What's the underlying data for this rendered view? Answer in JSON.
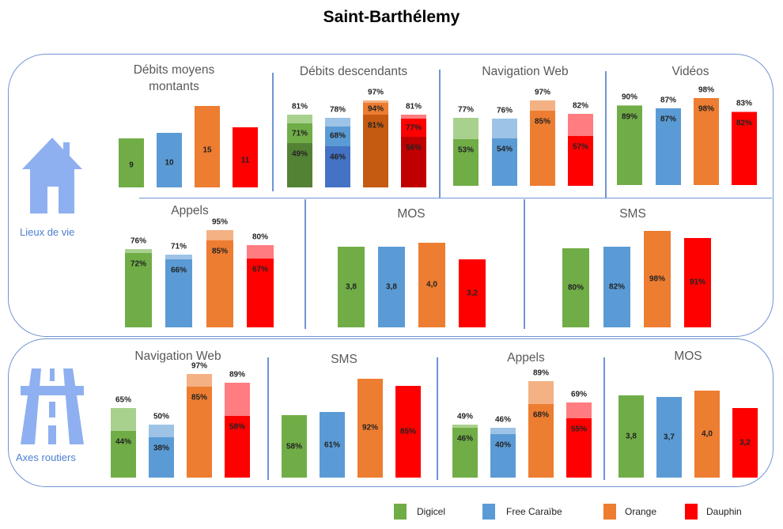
{
  "title": "Saint-Barthélemy",
  "sections": [
    {
      "label": "Lieux de vie",
      "icon": "house-icon"
    },
    {
      "label": "Axes routiers",
      "icon": "highway-icon"
    }
  ],
  "legend": [
    {
      "name": "Digicel",
      "color": "#70ad47"
    },
    {
      "name": "Free Caraïbe",
      "color": "#5b9bd5"
    },
    {
      "name": "Orange",
      "color": "#ed7d31"
    },
    {
      "name": "Dauphin",
      "color": "#ff0000"
    }
  ],
  "colors": {
    "Digicel": {
      "main": "#70ad47",
      "light": "#a9d18e",
      "dark": "#548235"
    },
    "Free Caraïbe": {
      "main": "#5b9bd5",
      "light": "#9dc3e6",
      "dark": "#4472c4"
    },
    "Orange": {
      "main": "#ed7d31",
      "light": "#f4b183",
      "dark": "#c55a11"
    },
    "Dauphin": {
      "main": "#ff0000",
      "light": "#ff7c80",
      "dark": "#c00000"
    }
  },
  "chart_data": [
    {
      "type": "bar",
      "section": "Lieux de vie",
      "title": "Débits moyens\nmontants",
      "categories": [
        "Digicel",
        "Free Caraïbe",
        "Orange",
        "Dauphin"
      ],
      "values": [
        [
          9
        ],
        [
          10
        ],
        [
          15
        ],
        [
          11
        ]
      ],
      "labels": [
        [
          "9"
        ],
        [
          "10"
        ],
        [
          "15"
        ],
        [
          "11"
        ]
      ]
    },
    {
      "type": "bar",
      "section": "Lieux de vie",
      "title": "Débits descendants",
      "categories": [
        "Digicel",
        "Free Caraïbe",
        "Orange",
        "Dauphin"
      ],
      "values": [
        [
          49,
          71,
          81
        ],
        [
          46,
          68,
          78
        ],
        [
          81,
          94,
          97
        ],
        [
          56,
          77,
          81
        ]
      ],
      "labels": [
        [
          "49%",
          "71%",
          "81%"
        ],
        [
          "46%",
          "68%",
          "78%"
        ],
        [
          "81%",
          "94%",
          "97%"
        ],
        [
          "56%",
          "77%",
          "81%"
        ]
      ]
    },
    {
      "type": "bar",
      "section": "Lieux de vie",
      "title": "Navigation Web",
      "categories": [
        "Digicel",
        "Free Caraïbe",
        "Orange",
        "Dauphin"
      ],
      "values": [
        [
          53,
          77
        ],
        [
          54,
          76
        ],
        [
          85,
          97
        ],
        [
          57,
          82
        ]
      ],
      "labels": [
        [
          "53%",
          "77%"
        ],
        [
          "54%",
          "76%"
        ],
        [
          "85%",
          "97%"
        ],
        [
          "57%",
          "82%"
        ]
      ]
    },
    {
      "type": "bar",
      "section": "Lieux de vie",
      "title": "Vidéos",
      "categories": [
        "Digicel",
        "Free Caraïbe",
        "Orange",
        "Dauphin"
      ],
      "values": [
        [
          89,
          90
        ],
        [
          87,
          87
        ],
        [
          98,
          98
        ],
        [
          82,
          83
        ]
      ],
      "labels": [
        [
          "89%",
          "90%"
        ],
        [
          "87%",
          "87%"
        ],
        [
          "98%",
          "98%"
        ],
        [
          "82%",
          "83%"
        ]
      ]
    },
    {
      "type": "bar",
      "section": "Lieux de vie",
      "title": "Appels",
      "categories": [
        "Digicel",
        "Free Caraïbe",
        "Orange",
        "Dauphin"
      ],
      "values": [
        [
          72,
          76
        ],
        [
          66,
          71
        ],
        [
          85,
          95
        ],
        [
          67,
          80
        ]
      ],
      "labels": [
        [
          "72%",
          "76%"
        ],
        [
          "66%",
          "71%"
        ],
        [
          "85%",
          "95%"
        ],
        [
          "67%",
          "80%"
        ]
      ]
    },
    {
      "type": "bar",
      "section": "Lieux de vie",
      "title": "MOS",
      "categories": [
        "Digicel",
        "Free Caraïbe",
        "Orange",
        "Dauphin"
      ],
      "values": [
        [
          3.8
        ],
        [
          3.8
        ],
        [
          4.0
        ],
        [
          3.2
        ]
      ],
      "labels": [
        [
          "3,8"
        ],
        [
          "3,8"
        ],
        [
          "4,0"
        ],
        [
          "3,2"
        ]
      ]
    },
    {
      "type": "bar",
      "section": "Lieux de vie",
      "title": "SMS",
      "categories": [
        "Digicel",
        "Free Caraïbe",
        "Orange",
        "Dauphin"
      ],
      "values": [
        [
          80
        ],
        [
          82
        ],
        [
          98
        ],
        [
          91
        ]
      ],
      "labels": [
        [
          "80%"
        ],
        [
          "82%"
        ],
        [
          "98%"
        ],
        [
          "91%"
        ]
      ]
    },
    {
      "type": "bar",
      "section": "Axes routiers",
      "title": "Navigation Web",
      "categories": [
        "Digicel",
        "Free Caraïbe",
        "Orange",
        "Dauphin"
      ],
      "values": [
        [
          44,
          65
        ],
        [
          38,
          50
        ],
        [
          85,
          97
        ],
        [
          58,
          89
        ]
      ],
      "labels": [
        [
          "44%",
          "65%"
        ],
        [
          "38%",
          "50%"
        ],
        [
          "85%",
          "97%"
        ],
        [
          "58%",
          "89%"
        ]
      ]
    },
    {
      "type": "bar",
      "section": "Axes routiers",
      "title": "SMS",
      "categories": [
        "Digicel",
        "Free Caraïbe",
        "Orange",
        "Dauphin"
      ],
      "values": [
        [
          58
        ],
        [
          61
        ],
        [
          92
        ],
        [
          85
        ]
      ],
      "labels": [
        [
          "58%"
        ],
        [
          "61%"
        ],
        [
          "92%"
        ],
        [
          "85%"
        ]
      ]
    },
    {
      "type": "bar",
      "section": "Axes routiers",
      "title": "Appels",
      "categories": [
        "Digicel",
        "Free Caraïbe",
        "Orange",
        "Dauphin"
      ],
      "values": [
        [
          46,
          49
        ],
        [
          40,
          46
        ],
        [
          68,
          89
        ],
        [
          55,
          69
        ]
      ],
      "labels": [
        [
          "46%",
          "49%"
        ],
        [
          "40%",
          "46%"
        ],
        [
          "68%",
          "89%"
        ],
        [
          "55%",
          "69%"
        ]
      ]
    },
    {
      "type": "bar",
      "section": "Axes routiers",
      "title": "MOS",
      "categories": [
        "Digicel",
        "Free Caraïbe",
        "Orange",
        "Dauphin"
      ],
      "values": [
        [
          3.8
        ],
        [
          3.7
        ],
        [
          4.0
        ],
        [
          3.2
        ]
      ],
      "labels": [
        [
          "3,8"
        ],
        [
          "3,7"
        ],
        [
          "4,0"
        ],
        [
          "3,2"
        ]
      ]
    }
  ]
}
